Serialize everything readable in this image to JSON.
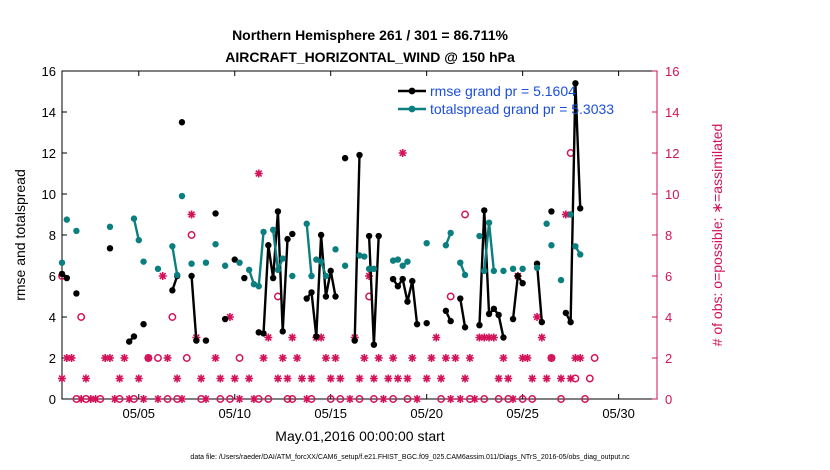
{
  "chart_data": {
    "type": "line",
    "title": [
      "Northern Hemisphere 261 / 301 = 86.711%",
      "AIRCRAFT_HORIZONTAL_WIND @ 150 hPa"
    ],
    "xlabel": "May.01,2016 00:00:00 start",
    "ylabel_left": "rmse and totalspread",
    "ylabel_right": "# of obs: o=possible; ∗=assimilated",
    "footnote": "data file: /Users/raeder/DAI/ATM_forcXX/CAM6_setup/f.e21.FHIST_BGC.f09_025.CAM6assim.011/Diags_NTrS_2016-05/obs_diag_output.nc",
    "xlim": [
      1,
      32
    ],
    "ylim_left": [
      0,
      16
    ],
    "ylim_right": [
      0,
      16
    ],
    "x_ticks": [
      5,
      10,
      15,
      20,
      25,
      30
    ],
    "x_tick_labels": [
      "05/05",
      "05/10",
      "05/15",
      "05/20",
      "05/25",
      "05/30"
    ],
    "y_ticks": [
      0,
      2,
      4,
      6,
      8,
      10,
      12,
      14,
      16
    ],
    "y_tick_labels": [
      "0",
      "2",
      "4",
      "6",
      "8",
      "10",
      "12",
      "14",
      "16"
    ],
    "legend_position": "top-right",
    "colors": {
      "rmse": "#000000",
      "spread": "#0b7f7f",
      "obs": "#d3125a",
      "legend_text": "#1a4fd6"
    },
    "series": [
      {
        "name": "rmse grand pr = 5.1604",
        "segments": [
          [
            [
              1.0,
              6.1
            ],
            [
              1.25,
              5.9
            ]
          ],
          [
            [
              1.75,
              5.15
            ]
          ],
          [
            [
              3.5,
              7.35
            ]
          ],
          [
            [
              4.5,
              2.8
            ],
            [
              4.75,
              3.05
            ]
          ],
          [
            [
              5.25,
              3.65
            ]
          ],
          [
            [
              6.75,
              5.3
            ],
            [
              7.0,
              6.0
            ]
          ],
          [
            [
              7.25,
              13.5
            ]
          ],
          [
            [
              7.75,
              6.0
            ],
            [
              8.0,
              2.85
            ]
          ],
          [
            [
              8.5,
              2.85
            ]
          ],
          [
            [
              9.0,
              9.05
            ]
          ],
          [
            [
              9.5,
              3.9
            ]
          ],
          [
            [
              10.0,
              6.8
            ]
          ],
          [
            [
              10.5,
              5.9
            ]
          ],
          [
            [
              11.25,
              3.25
            ],
            [
              11.5,
              3.2
            ],
            [
              11.75,
              7.5
            ],
            [
              12.0,
              5.9
            ],
            [
              12.25,
              9.15
            ],
            [
              12.5,
              3.3
            ],
            [
              12.75,
              7.8
            ]
          ],
          [
            [
              13.0,
              8.05
            ]
          ],
          [
            [
              13.75,
              4.9
            ],
            [
              14.0,
              5.2
            ],
            [
              14.25,
              3.05
            ],
            [
              14.5,
              8.0
            ],
            [
              14.75,
              5.0
            ],
            [
              15.0,
              6.25
            ],
            [
              15.25,
              5.0
            ]
          ],
          [
            [
              15.75,
              11.75
            ]
          ],
          [
            [
              16.25,
              2.85
            ],
            [
              16.5,
              11.9
            ]
          ],
          [
            [
              17.0,
              7.95
            ],
            [
              17.25,
              2.65
            ],
            [
              17.5,
              7.95
            ]
          ],
          [
            [
              18.25,
              5.85
            ],
            [
              18.5,
              5.5
            ],
            [
              18.75,
              5.85
            ],
            [
              19.0,
              4.75
            ],
            [
              19.25,
              5.75
            ],
            [
              19.5,
              3.65
            ]
          ],
          [
            [
              20.0,
              3.7
            ]
          ],
          [
            [
              21.0,
              4.3
            ],
            [
              21.25,
              3.8
            ]
          ],
          [
            [
              21.75,
              4.9
            ],
            [
              22.0,
              3.5
            ]
          ],
          [
            [
              22.75,
              3.6
            ],
            [
              23.0,
              9.2
            ],
            [
              23.25,
              4.15
            ],
            [
              23.5,
              4.4
            ],
            [
              23.75,
              4.1
            ],
            [
              24.0,
              3.0
            ]
          ],
          [
            [
              24.5,
              3.9
            ],
            [
              24.75,
              6.0
            ],
            [
              25.0,
              5.65
            ]
          ],
          [
            [
              25.75,
              6.6
            ],
            [
              26.0,
              3.75
            ]
          ],
          [
            [
              26.5,
              9.15
            ]
          ],
          [
            [
              27.25,
              4.2
            ],
            [
              27.5,
              3.75
            ],
            [
              27.75,
              15.4
            ],
            [
              28.0,
              9.3
            ]
          ]
        ]
      },
      {
        "name": "totalspread grand pr = 5.3033",
        "segments": [
          [
            [
              1.0,
              6.65
            ]
          ],
          [
            [
              1.25,
              8.75
            ]
          ],
          [
            [
              1.75,
              8.2
            ]
          ],
          [
            [
              3.5,
              8.4
            ]
          ],
          [
            [
              4.75,
              8.8
            ],
            [
              5.0,
              7.75
            ]
          ],
          [
            [
              5.25,
              6.7
            ]
          ],
          [
            [
              6.0,
              6.35
            ]
          ],
          [
            [
              6.75,
              7.45
            ],
            [
              7.0,
              6.05
            ]
          ],
          [
            [
              7.25,
              9.9
            ]
          ],
          [
            [
              7.75,
              6.6
            ]
          ],
          [
            [
              8.5,
              6.65
            ]
          ],
          [
            [
              9.0,
              7.55
            ]
          ],
          [
            [
              9.5,
              6.5
            ]
          ],
          [
            [
              10.25,
              6.65
            ]
          ],
          [
            [
              10.75,
              6.3
            ],
            [
              11.0,
              5.6
            ]
          ],
          [
            [
              11.25,
              5.5
            ],
            [
              11.5,
              8.15
            ]
          ],
          [
            [
              12.0,
              8.25
            ],
            [
              12.25,
              6.3
            ],
            [
              12.5,
              6.85
            ]
          ],
          [
            [
              13.0,
              6.0
            ]
          ],
          [
            [
              13.75,
              8.55
            ],
            [
              14.0,
              6.0
            ]
          ],
          [
            [
              14.25,
              6.8
            ],
            [
              14.5,
              6.7
            ],
            [
              14.75,
              6.0
            ]
          ],
          [
            [
              15.25,
              7.3
            ]
          ],
          [
            [
              15.75,
              6.5
            ]
          ],
          [
            [
              16.5,
              7.0
            ],
            [
              16.75,
              6.95
            ]
          ],
          [
            [
              17.0,
              6.35
            ],
            [
              17.25,
              6.35
            ]
          ],
          [
            [
              18.25,
              6.75
            ],
            [
              18.5,
              6.8
            ]
          ],
          [
            [
              18.75,
              6.5
            ],
            [
              19.0,
              6.7
            ]
          ],
          [
            [
              20.0,
              7.6
            ]
          ],
          [
            [
              21.0,
              7.5
            ],
            [
              21.25,
              8.1
            ]
          ],
          [
            [
              21.75,
              6.65
            ],
            [
              22.0,
              6.05
            ]
          ],
          [
            [
              22.75,
              7.95
            ]
          ],
          [
            [
              23.0,
              6.25
            ],
            [
              23.25,
              8.6
            ],
            [
              23.5,
              6.25
            ]
          ],
          [
            [
              24.0,
              6.25
            ]
          ],
          [
            [
              24.5,
              6.35
            ]
          ],
          [
            [
              25.0,
              6.35
            ]
          ],
          [
            [
              25.75,
              6.4
            ]
          ],
          [
            [
              26.25,
              8.55
            ]
          ],
          [
            [
              26.5,
              7.5
            ]
          ],
          [
            [
              27.0,
              5.8
            ]
          ],
          [
            [
              27.5,
              9.0
            ]
          ],
          [
            [
              27.75,
              7.45
            ],
            [
              28.0,
              7.05
            ]
          ]
        ]
      }
    ],
    "obs_possible": [
      [
        1.0,
        6
      ],
      [
        1.75,
        0
      ],
      [
        2.0,
        4
      ],
      [
        2.25,
        0
      ],
      [
        3.0,
        0
      ],
      [
        4.0,
        0
      ],
      [
        4.75,
        0
      ],
      [
        5.5,
        2
      ],
      [
        6.0,
        2
      ],
      [
        6.5,
        0
      ],
      [
        6.75,
        4
      ],
      [
        7.0,
        0
      ],
      [
        7.5,
        2
      ],
      [
        7.75,
        8
      ],
      [
        8.25,
        0
      ],
      [
        9.25,
        0
      ],
      [
        9.75,
        0
      ],
      [
        10.25,
        2
      ],
      [
        11.25,
        0
      ],
      [
        11.75,
        0
      ],
      [
        12.25,
        5
      ],
      [
        12.75,
        0
      ],
      [
        13.0,
        0
      ],
      [
        14.0,
        0
      ],
      [
        15.0,
        0
      ],
      [
        15.5,
        0
      ],
      [
        16.5,
        0
      ],
      [
        17.0,
        5
      ],
      [
        17.25,
        0
      ],
      [
        18.25,
        0
      ],
      [
        19.0,
        0
      ],
      [
        20.75,
        0
      ],
      [
        21.25,
        5
      ],
      [
        22.0,
        9
      ],
      [
        22.25,
        0
      ],
      [
        23.0,
        0
      ],
      [
        23.75,
        0
      ],
      [
        24.25,
        0
      ],
      [
        25.0,
        0
      ],
      [
        25.5,
        0
      ],
      [
        26.5,
        2
      ],
      [
        27.0,
        0
      ],
      [
        27.5,
        12
      ],
      [
        27.75,
        1
      ],
      [
        28.25,
        0
      ],
      [
        28.5,
        1
      ],
      [
        28.75,
        2
      ]
    ],
    "obs_assimilated": [
      [
        1.0,
        1
      ],
      [
        1.25,
        2
      ],
      [
        1.5,
        2
      ],
      [
        2.0,
        0
      ],
      [
        2.25,
        1
      ],
      [
        2.5,
        0
      ],
      [
        2.75,
        0
      ],
      [
        3.25,
        2
      ],
      [
        3.5,
        2
      ],
      [
        3.75,
        0
      ],
      [
        4.0,
        1
      ],
      [
        4.25,
        2
      ],
      [
        4.5,
        0
      ],
      [
        5.0,
        1
      ],
      [
        5.25,
        0
      ],
      [
        5.5,
        2
      ],
      [
        6.0,
        0
      ],
      [
        6.25,
        6
      ],
      [
        6.5,
        2
      ],
      [
        7.0,
        1
      ],
      [
        7.25,
        0
      ],
      [
        7.75,
        9
      ],
      [
        8.0,
        3
      ],
      [
        8.25,
        1
      ],
      [
        8.5,
        0
      ],
      [
        9.0,
        2
      ],
      [
        9.25,
        1
      ],
      [
        9.75,
        4
      ],
      [
        10.0,
        1
      ],
      [
        10.25,
        0
      ],
      [
        10.75,
        1
      ],
      [
        11.0,
        0
      ],
      [
        11.25,
        11
      ],
      [
        11.5,
        2
      ],
      [
        11.75,
        3
      ],
      [
        12.25,
        1
      ],
      [
        12.5,
        2
      ],
      [
        12.75,
        1
      ],
      [
        13.0,
        3
      ],
      [
        13.25,
        2
      ],
      [
        13.5,
        1
      ],
      [
        13.75,
        0
      ],
      [
        14.0,
        1
      ],
      [
        14.25,
        3
      ],
      [
        14.5,
        3
      ],
      [
        14.75,
        2
      ],
      [
        15.0,
        1
      ],
      [
        15.25,
        2
      ],
      [
        15.5,
        1
      ],
      [
        16.0,
        0
      ],
      [
        16.25,
        3
      ],
      [
        16.5,
        1
      ],
      [
        16.75,
        2
      ],
      [
        17.0,
        6
      ],
      [
        17.25,
        1
      ],
      [
        17.5,
        2
      ],
      [
        17.75,
        0
      ],
      [
        18.0,
        1
      ],
      [
        18.25,
        2
      ],
      [
        18.5,
        1
      ],
      [
        18.75,
        12
      ],
      [
        19.0,
        1
      ],
      [
        19.25,
        2
      ],
      [
        19.5,
        0
      ],
      [
        20.0,
        1
      ],
      [
        20.25,
        2
      ],
      [
        20.5,
        3
      ],
      [
        20.75,
        1
      ],
      [
        21.0,
        2
      ],
      [
        21.25,
        0
      ],
      [
        21.5,
        2
      ],
      [
        21.75,
        0
      ],
      [
        22.0,
        1
      ],
      [
        22.25,
        2
      ],
      [
        22.5,
        0
      ],
      [
        22.75,
        3
      ],
      [
        23.0,
        3
      ],
      [
        23.25,
        3
      ],
      [
        23.5,
        3
      ],
      [
        23.75,
        1
      ],
      [
        24.0,
        2
      ],
      [
        24.25,
        1
      ],
      [
        24.5,
        0
      ],
      [
        24.75,
        6
      ],
      [
        25.0,
        2
      ],
      [
        25.25,
        2
      ],
      [
        25.5,
        1
      ],
      [
        25.75,
        4
      ],
      [
        26.0,
        3
      ],
      [
        26.25,
        1
      ],
      [
        26.5,
        2
      ],
      [
        27.0,
        1
      ],
      [
        27.25,
        9
      ],
      [
        27.5,
        1
      ],
      [
        27.75,
        2
      ],
      [
        28.0,
        2
      ]
    ]
  }
}
